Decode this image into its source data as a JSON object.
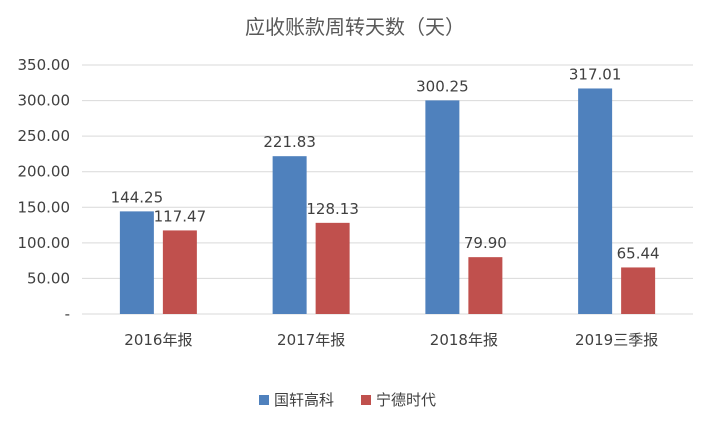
{
  "chart_data": {
    "type": "bar",
    "title": "应收账款周转天数（天）",
    "categories": [
      "2016年报",
      "2017年报",
      "2018年报",
      "2019三季报"
    ],
    "series": [
      {
        "name": "国轩高科",
        "color": "#4f81bd",
        "values": [
          144.25,
          221.83,
          300.25,
          317.01
        ],
        "labels": [
          "144.25",
          "221.83",
          "300.25",
          "317.01"
        ]
      },
      {
        "name": "宁德时代",
        "color": "#c0504d",
        "values": [
          117.47,
          128.13,
          79.9,
          65.44
        ],
        "labels": [
          "117.47",
          "128.13",
          "79.90",
          "65.44"
        ]
      }
    ],
    "ylim": [
      0,
      350
    ],
    "yticks": [
      0,
      50,
      100,
      150,
      200,
      250,
      300,
      350
    ],
    "ytick_labels": [
      "-",
      "50.00",
      "100.00",
      "150.00",
      "200.00",
      "250.00",
      "300.00",
      "350.00"
    ],
    "xlabel": "",
    "ylabel": "",
    "legend": "bottom",
    "grid": true
  }
}
